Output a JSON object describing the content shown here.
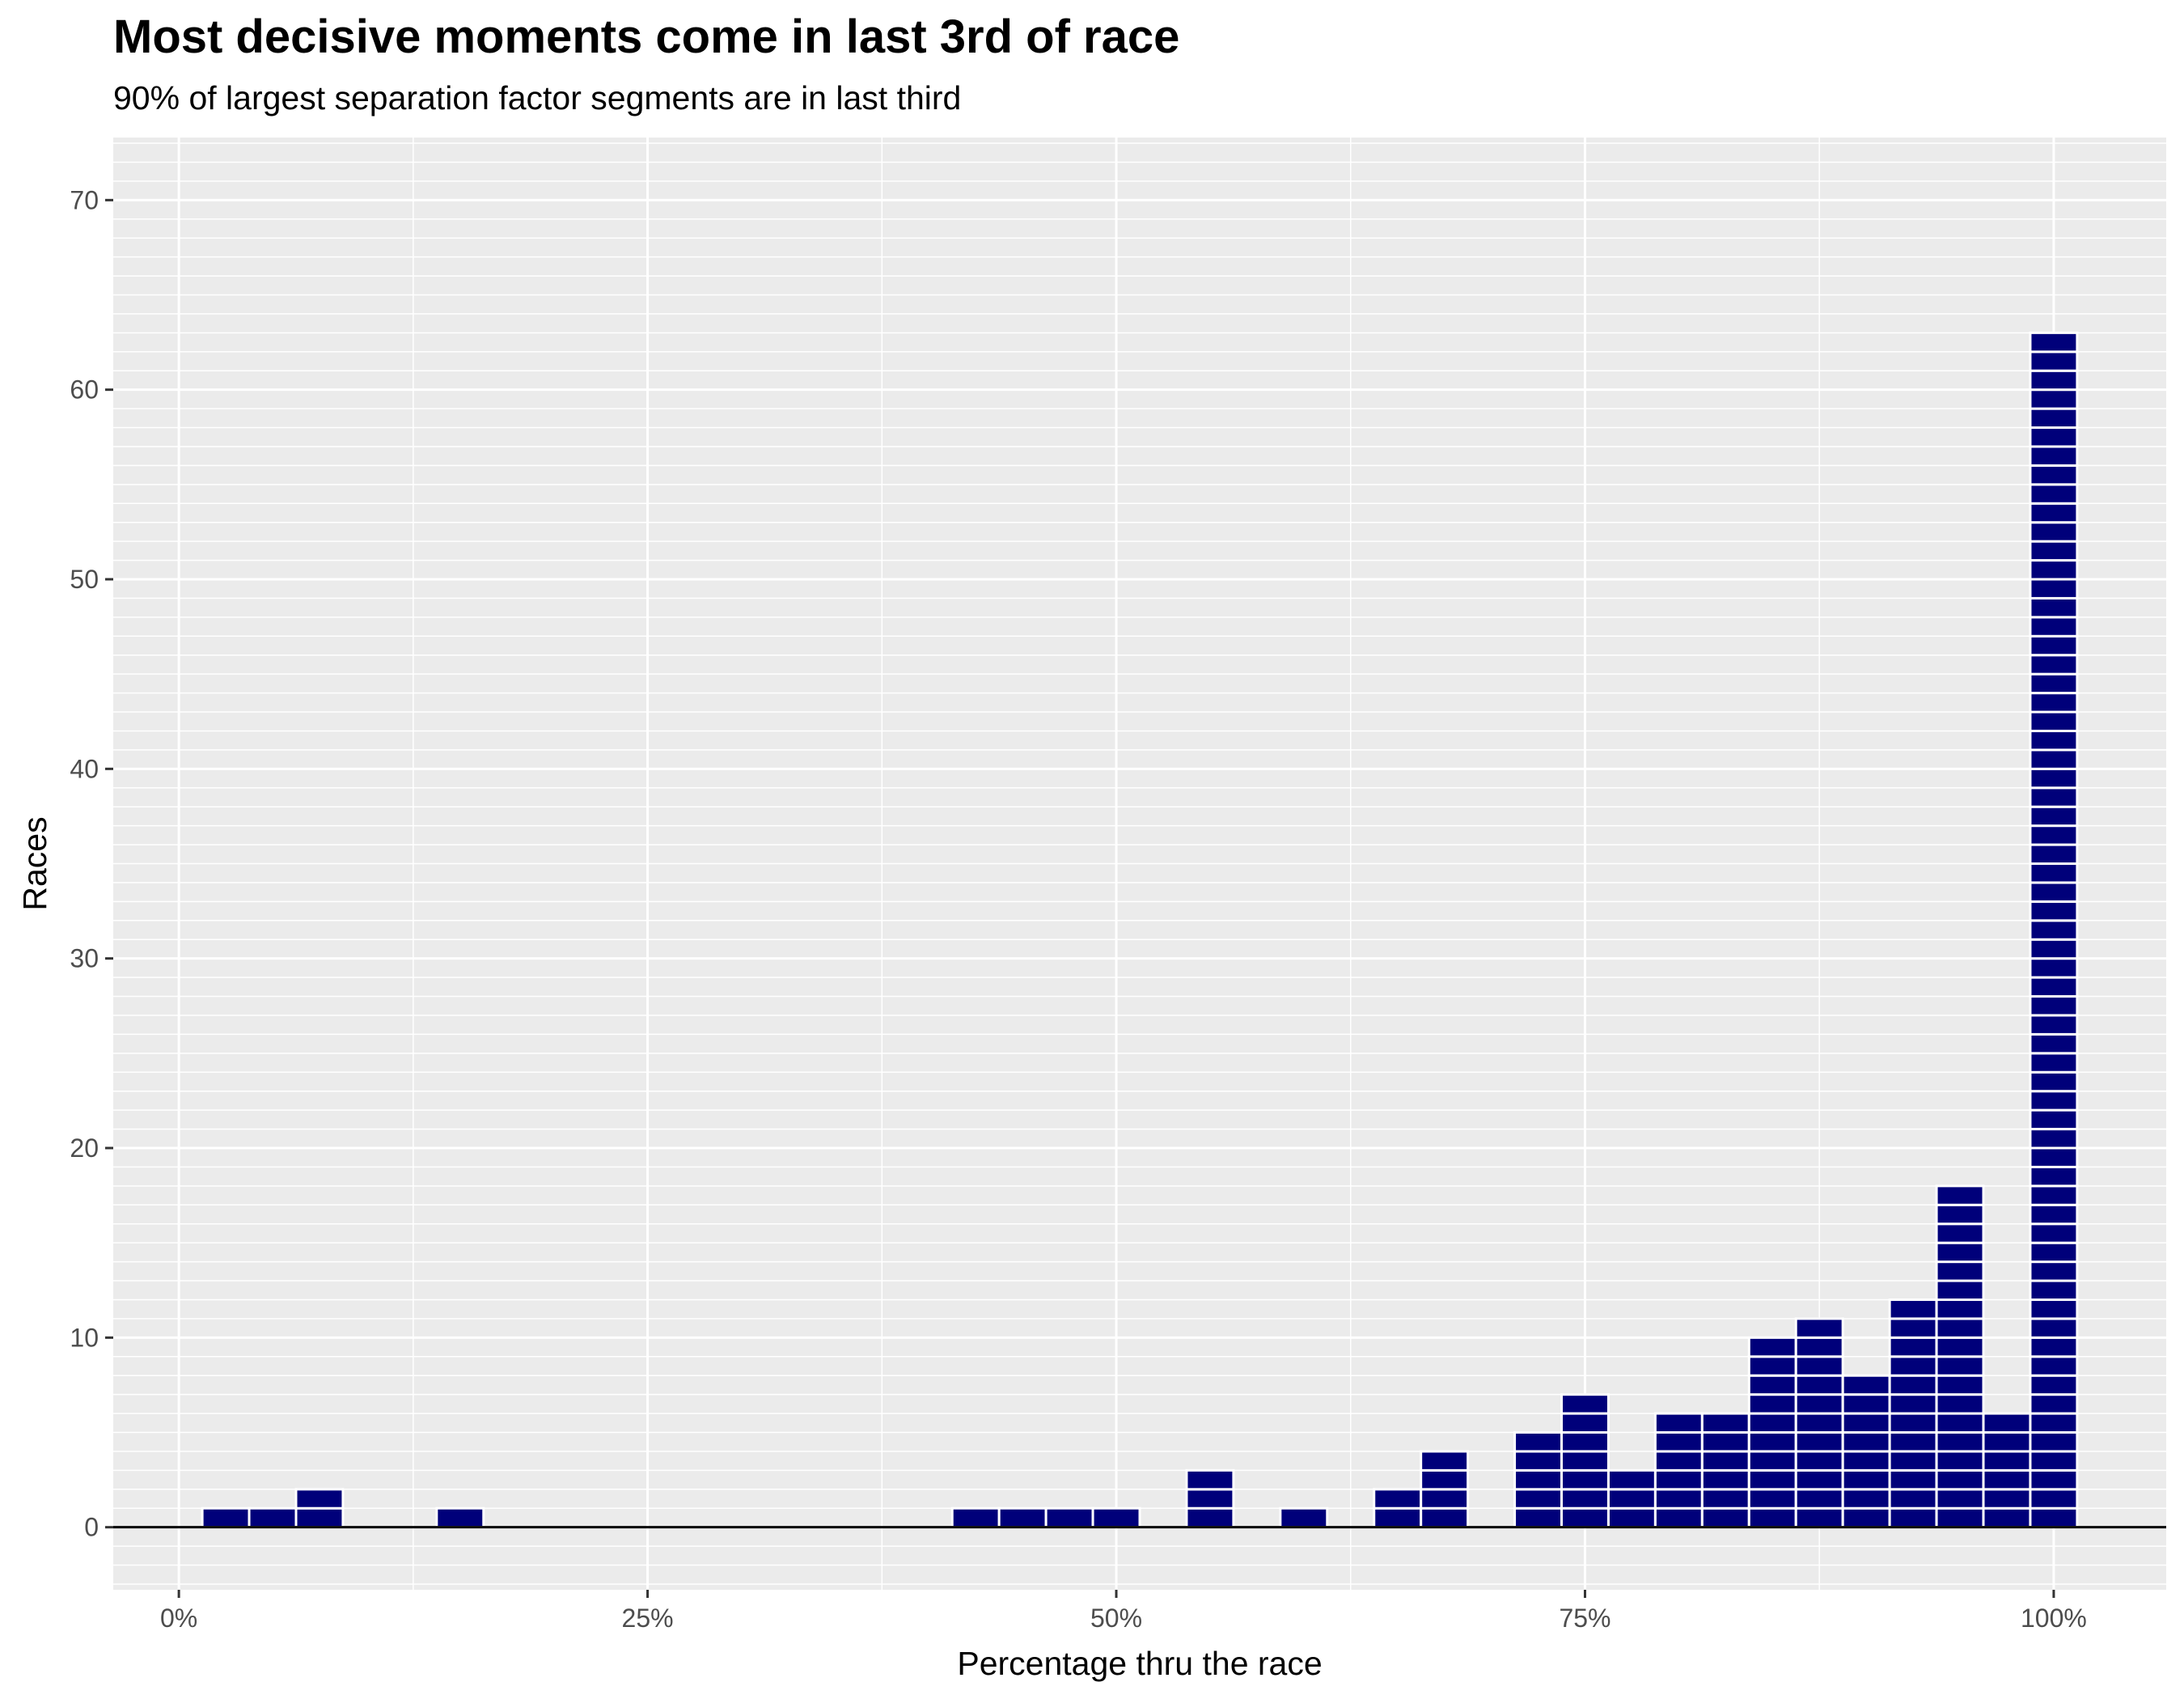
{
  "chart_data": {
    "type": "bar",
    "title": "Most decisive moments come in last 3rd of race",
    "subtitle": "90% of largest separation factor segments are in last third",
    "xlabel": "Percentage thru the race",
    "ylabel": "Races",
    "xlim": [
      -0.035,
      1.06
    ],
    "ylim": [
      -3.3,
      73.3
    ],
    "x_ticks": [
      0,
      0.25,
      0.5,
      0.75,
      1.0
    ],
    "x_tick_labels": [
      "0%",
      "25%",
      "50%",
      "75%",
      "100%"
    ],
    "y_ticks": [
      0,
      10,
      20,
      30,
      40,
      50,
      60,
      70
    ],
    "y_tick_labels": [
      "0",
      "10",
      "20",
      "30",
      "40",
      "50",
      "60",
      "70"
    ],
    "bin_width": 0.025,
    "bar_style": "stacked unit blocks, one block per race",
    "bins": [
      {
        "x": 0.025,
        "count": 1
      },
      {
        "x": 0.05,
        "count": 1
      },
      {
        "x": 0.075,
        "count": 2
      },
      {
        "x": 0.15,
        "count": 1
      },
      {
        "x": 0.425,
        "count": 1
      },
      {
        "x": 0.45,
        "count": 1
      },
      {
        "x": 0.475,
        "count": 1
      },
      {
        "x": 0.5,
        "count": 1
      },
      {
        "x": 0.55,
        "count": 3
      },
      {
        "x": 0.6,
        "count": 1
      },
      {
        "x": 0.65,
        "count": 2
      },
      {
        "x": 0.675,
        "count": 4
      },
      {
        "x": 0.725,
        "count": 5
      },
      {
        "x": 0.75,
        "count": 7
      },
      {
        "x": 0.775,
        "count": 3
      },
      {
        "x": 0.8,
        "count": 6
      },
      {
        "x": 0.825,
        "count": 6
      },
      {
        "x": 0.85,
        "count": 10
      },
      {
        "x": 0.875,
        "count": 11
      },
      {
        "x": 0.9,
        "count": 8
      },
      {
        "x": 0.925,
        "count": 12
      },
      {
        "x": 0.95,
        "count": 18
      },
      {
        "x": 0.975,
        "count": 6
      },
      {
        "x": 1.0,
        "count": 63
      }
    ],
    "grid": true,
    "colors": {
      "bar_fill": "#00007a",
      "bar_outline": "#ffffff",
      "panel_background": "#ebebeb",
      "grid": "#ffffff",
      "baseline": "#000000"
    }
  }
}
